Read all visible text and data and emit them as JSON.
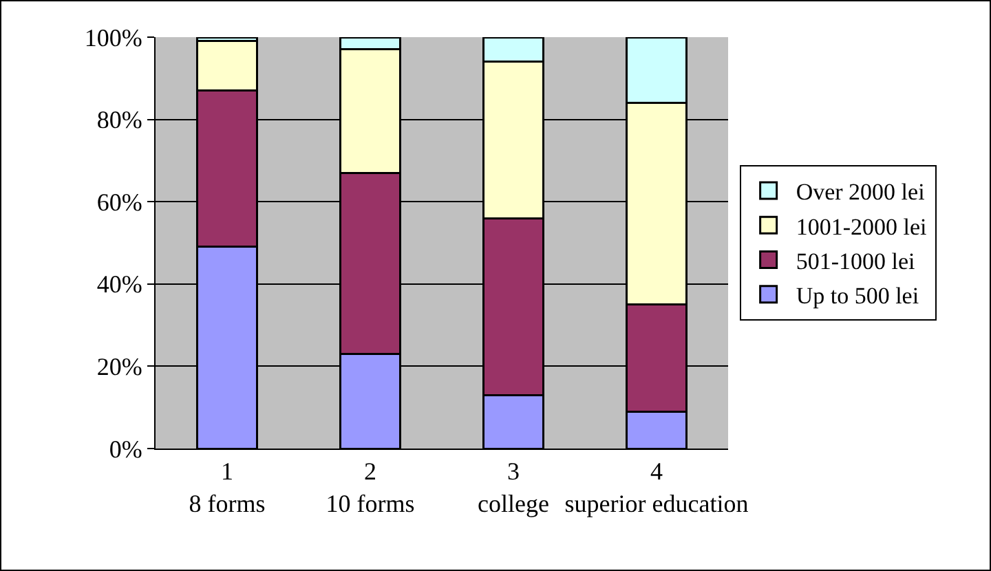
{
  "chart_data": {
    "type": "bar",
    "stacked": true,
    "categories": [
      "1\n8 forms",
      "2\n10 forms",
      "3\ncollege",
      "4\nsuperior education"
    ],
    "series": [
      {
        "name": "Up to 500 lei",
        "color": "#9999ff",
        "values": [
          49,
          23,
          13,
          9
        ]
      },
      {
        "name": "501-1000 lei",
        "color": "#993366",
        "values": [
          38,
          44,
          43,
          26
        ]
      },
      {
        "name": "1001-2000 lei",
        "color": "#ffffcc",
        "values": [
          12,
          30,
          38,
          49
        ]
      },
      {
        "name": "Over 2000 lei",
        "color": "#ccffff",
        "values": [
          1,
          3,
          6,
          16
        ]
      }
    ],
    "ylim": [
      0,
      100
    ],
    "yticks": [
      {
        "value": 0,
        "label": "0%"
      },
      {
        "value": 20,
        "label": "20%"
      },
      {
        "value": 40,
        "label": "40%"
      },
      {
        "value": 60,
        "label": "60%"
      },
      {
        "value": 80,
        "label": "80%"
      },
      {
        "value": 100,
        "label": "100%"
      }
    ],
    "grid": "y",
    "legend": "right"
  }
}
